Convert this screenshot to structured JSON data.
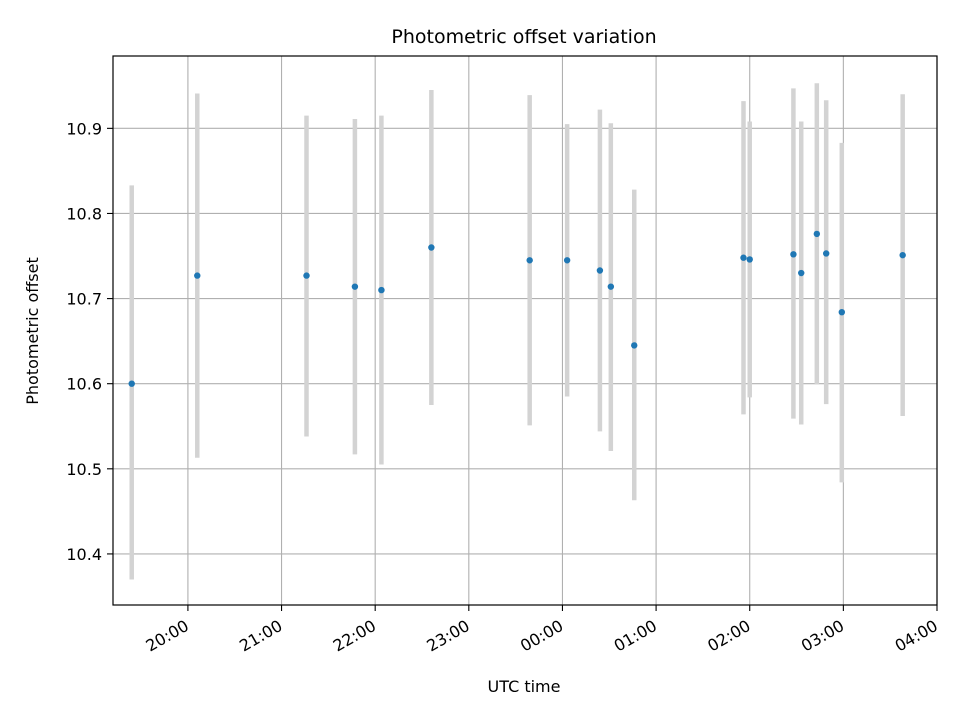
{
  "chart_data": {
    "type": "scatter",
    "title": "Photometric offset variation",
    "xlabel": "UTC time",
    "ylabel": "Photometric offset",
    "x_axis_kind": "time (hours after 19:00 UTC, wrapping past midnight)",
    "xlim": [
      "19:12",
      "04:00"
    ],
    "ylim": [
      10.34,
      10.985
    ],
    "x_ticks": [
      "20:00",
      "21:00",
      "22:00",
      "23:00",
      "00:00",
      "01:00",
      "02:00",
      "03:00",
      "04:00"
    ],
    "y_ticks": [
      "10.4",
      "10.5",
      "10.6",
      "10.7",
      "10.8",
      "10.9"
    ],
    "grid": true,
    "colors": {
      "points": "#1f77b4",
      "error_bars": "#d3d3d3",
      "grid": "#b0b0b0"
    },
    "series": [
      {
        "points": [
          {
            "time": "19:24",
            "y": 10.6,
            "y_low": 10.37,
            "y_high": 10.833
          },
          {
            "time": "20:06",
            "y": 10.727,
            "y_low": 10.513,
            "y_high": 10.941
          },
          {
            "time": "21:16",
            "y": 10.727,
            "y_low": 10.538,
            "y_high": 10.915
          },
          {
            "time": "21:47",
            "y": 10.714,
            "y_low": 10.517,
            "y_high": 10.911
          },
          {
            "time": "22:04",
            "y": 10.71,
            "y_low": 10.505,
            "y_high": 10.915
          },
          {
            "time": "22:36",
            "y": 10.76,
            "y_low": 10.575,
            "y_high": 10.945
          },
          {
            "time": "23:39",
            "y": 10.745,
            "y_low": 10.551,
            "y_high": 10.939
          },
          {
            "time": "00:03",
            "y": 10.745,
            "y_low": 10.585,
            "y_high": 10.905
          },
          {
            "time": "00:24",
            "y": 10.733,
            "y_low": 10.544,
            "y_high": 10.922
          },
          {
            "time": "00:31",
            "y": 10.714,
            "y_low": 10.521,
            "y_high": 10.906
          },
          {
            "time": "00:46",
            "y": 10.645,
            "y_low": 10.463,
            "y_high": 10.828
          },
          {
            "time": "01:56",
            "y": 10.748,
            "y_low": 10.564,
            "y_high": 10.932
          },
          {
            "time": "02:00",
            "y": 10.746,
            "y_low": 10.584,
            "y_high": 10.908
          },
          {
            "time": "02:28",
            "y": 10.752,
            "y_low": 10.559,
            "y_high": 10.947
          },
          {
            "time": "02:33",
            "y": 10.73,
            "y_low": 10.552,
            "y_high": 10.908
          },
          {
            "time": "02:43",
            "y": 10.776,
            "y_low": 10.599,
            "y_high": 10.953
          },
          {
            "time": "02:49",
            "y": 10.753,
            "y_low": 10.576,
            "y_high": 10.933
          },
          {
            "time": "02:59",
            "y": 10.684,
            "y_low": 10.484,
            "y_high": 10.883
          },
          {
            "time": "03:38",
            "y": 10.751,
            "y_low": 10.562,
            "y_high": 10.94
          }
        ]
      }
    ]
  }
}
